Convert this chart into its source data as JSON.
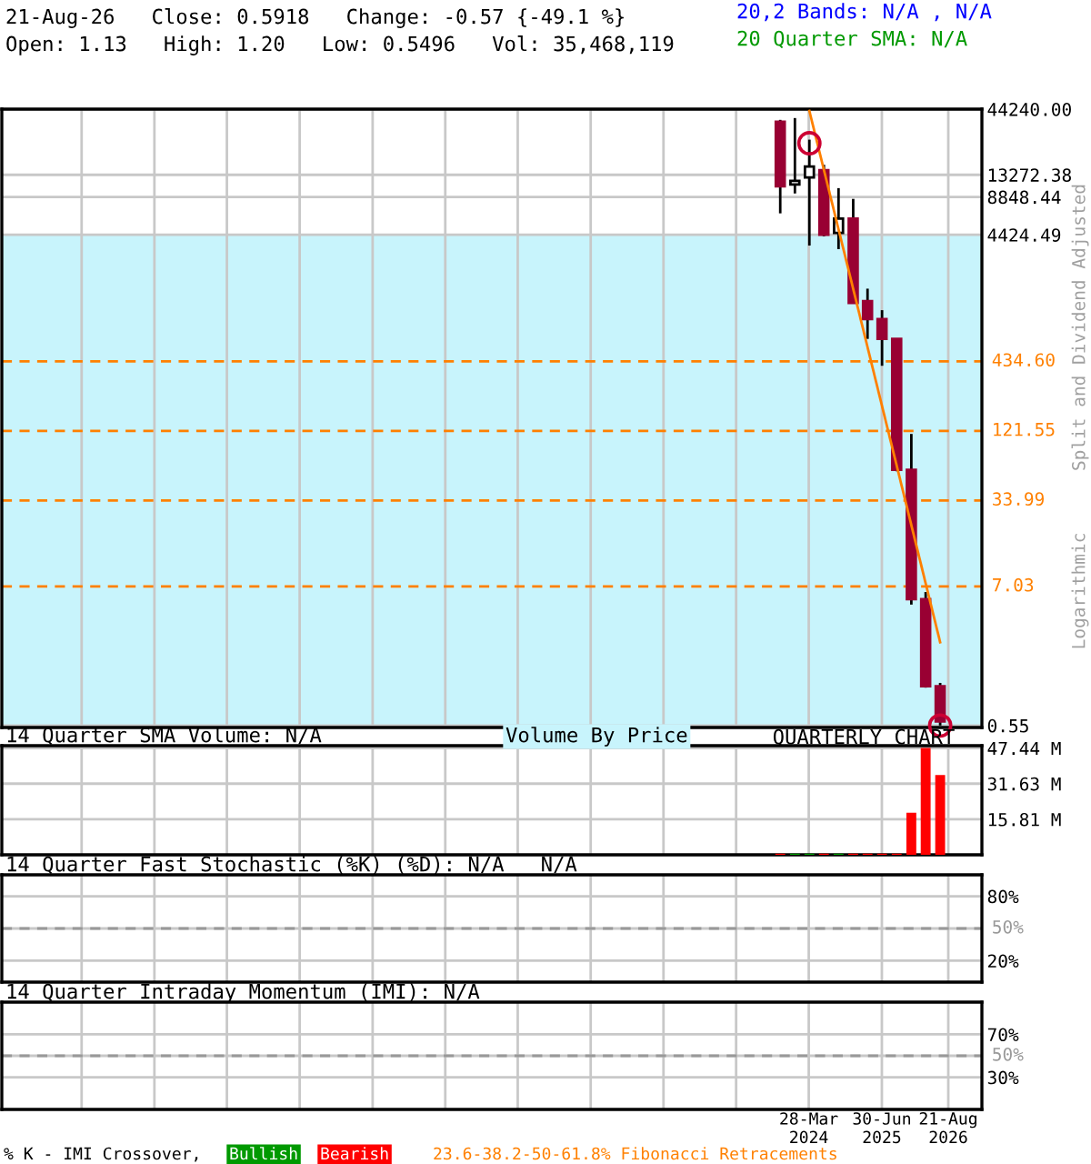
{
  "chart_data": [
    {
      "type": "candlestick",
      "title": "21-Aug-26   Close: 0.5918   Change: -0.57 {-49.1 %}",
      "subtitle": "Open: 1.13   High: 1.20   Low: 0.5496   Vol: 35,468,119",
      "x": [
        "2023-10-01",
        "2024-01-01",
        "2024-04-01",
        "2024-07-01",
        "2024-10-01",
        "2025-01-01",
        "2025-04-01",
        "2025-07-01",
        "2025-10-01",
        "2026-01-01",
        "2026-04-01",
        "2026-07-01"
      ],
      "ohlc": [
        [
          35140,
          36330,
          6550,
          10760
        ],
        [
          11110,
          37560,
          9430,
          11880
        ],
        [
          12670,
          25280,
          3630,
          15440
        ],
        [
          14460,
          15960,
          4300,
          4424
        ],
        [
          4570,
          10400,
          3400,
          5950
        ],
        [
          5950,
          8540,
          1250,
          1267
        ],
        [
          1310,
          1648,
          656,
          943
        ],
        [
          943,
          1111,
          401,
          656
        ],
        [
          656,
          656,
          58,
          59.5
        ],
        [
          59.5,
          115,
          5.04,
          5.57
        ],
        [
          5.57,
          6.35,
          1.1,
          1.13
        ],
        [
          1.13,
          1.2,
          0.5496,
          0.5918
        ]
      ],
      "colors": [
        "#990033",
        "#ffffff",
        "#ffffff",
        "#990033",
        "#ffffff",
        "#990033",
        "#990033",
        "#990033",
        "#990033",
        "#990033",
        "#990033",
        "#990033"
      ],
      "series": [
        {
          "type": "line",
          "color": "#ff8000",
          "x": [
            "2024-04-01",
            "2026-07-01"
          ],
          "values": [
            42820,
            2.53
          ],
          "marker": "none",
          "line_style": "solid"
        },
        {
          "type": "scatter",
          "color": "#cc0033",
          "x": [
            "2024-04-01",
            "2026-07-01"
          ],
          "values": [
            23680,
            0.5496
          ],
          "marker": "circle"
        }
      ],
      "log": true,
      "ylim": [
        0.53,
        44240
      ],
      "yticks": [
        {
          "value": 0.55,
          "label": "0.55"
        },
        {
          "value": 4424.49,
          "label": "4424.49"
        },
        {
          "value": 8848.44,
          "label": "8848.44"
        },
        {
          "value": 13272.38,
          "label": "13272.38"
        },
        {
          "value": 44240,
          "label": "44240.00"
        }
      ],
      "xlim": [
        "2010-05-15",
        "2027-03-20"
      ],
      "xticks": [
        {
          "value": "2011-09-28",
          "label": null
        },
        {
          "value": "2012-12-28",
          "label": null
        },
        {
          "value": "2014-03-28",
          "label": null
        },
        {
          "value": "2015-06-28",
          "label": null
        },
        {
          "value": "2016-09-28",
          "label": null
        },
        {
          "value": "2017-12-28",
          "label": null
        },
        {
          "value": "2019-03-28",
          "label": null
        },
        {
          "value": "2020-06-28",
          "label": null
        },
        {
          "value": "2021-09-28",
          "label": null
        },
        {
          "value": "2022-12-28",
          "label": null
        },
        {
          "value": "2024-03-28",
          "label": null
        },
        {
          "value": "2025-06-30",
          "label": null
        },
        {
          "value": "2026-08-21",
          "label": null
        }
      ],
      "ref_lines": [
        {
          "axis": "y",
          "value": 434.6,
          "label": "434.60",
          "color": "#ff8000",
          "line_style": "dashed"
        },
        {
          "axis": "y",
          "value": 121.55,
          "label": "121.55",
          "color": "#ff8000",
          "line_style": "dashed"
        },
        {
          "axis": "y",
          "value": 33.99,
          "label": "33.99",
          "color": "#ff8000",
          "line_style": "dashed"
        },
        {
          "axis": "y",
          "value": 7.03,
          "label": "7.03",
          "color": "#ff8000",
          "line_style": "dashed"
        }
      ],
      "bands": [
        {
          "axis": "y",
          "from": 0.55,
          "to": 4424.49,
          "color": "#c8f4fc"
        }
      ],
      "annotations": [
        "20,2 Bands: N/A , N/A",
        "20 Quarter SMA: N/A",
        "Split and Dividend Adjusted",
        "Logarithmic",
        "QUARTERLY CHART"
      ],
      "grid": true,
      "tick_labels": "y"
    },
    {
      "type": "bar",
      "title": "14 Quarter SMA Volume: N/A",
      "x": [
        "2023-10-01",
        "2024-01-01",
        "2024-04-01",
        "2024-07-01",
        "2024-10-01",
        "2025-01-01",
        "2025-04-01",
        "2025-07-01",
        "2025-10-01",
        "2026-01-01",
        "2026-04-01",
        "2026-07-01"
      ],
      "values": [
        0.5,
        0.5,
        0.5,
        0.5,
        0.5,
        0.5,
        0.5,
        0.5,
        0.5,
        18.7,
        47.44,
        35.47
      ],
      "colors": [
        "#ff0000",
        "#009900",
        "#009900",
        "#ff0000",
        "#009900",
        "#ff0000",
        "#ff0000",
        "#ff0000",
        "#ff0000",
        "#ff0000",
        "#ff0000",
        "#ff0000"
      ],
      "ylim": [
        0,
        48.5
      ],
      "yticks": [
        {
          "value": 15.81,
          "label": "15.81 M"
        },
        {
          "value": 31.63,
          "label": "31.63 M"
        },
        {
          "value": 47.44,
          "label": "47.44 M"
        }
      ],
      "xlim": [
        "2010-05-15",
        "2027-03-20"
      ],
      "xticks": [
        {
          "value": "2011-09-28",
          "label": null
        },
        {
          "value": "2012-12-28",
          "label": null
        },
        {
          "value": "2014-03-28",
          "label": null
        },
        {
          "value": "2015-06-28",
          "label": null
        },
        {
          "value": "2016-09-28",
          "label": null
        },
        {
          "value": "2017-12-28",
          "label": null
        },
        {
          "value": "2019-03-28",
          "label": null
        },
        {
          "value": "2020-06-28",
          "label": null
        },
        {
          "value": "2021-09-28",
          "label": null
        },
        {
          "value": "2022-12-28",
          "label": null
        },
        {
          "value": "2024-03-28",
          "label": null
        },
        {
          "value": "2025-06-30",
          "label": null
        },
        {
          "value": "2026-08-21",
          "label": null
        }
      ],
      "annotations": [
        "Volume By Price"
      ],
      "grid": true,
      "tick_labels": "y"
    },
    {
      "type": "line",
      "title": "14 Quarter Fast Stochastic (%K) (%D): N/A   N/A",
      "ylim": [
        0,
        100
      ],
      "yticks": [
        {
          "value": 20,
          "label": "20%"
        },
        {
          "value": 50,
          "label": null
        },
        {
          "value": 80,
          "label": "80%"
        }
      ],
      "ref_lines": [
        {
          "axis": "y",
          "value": 50,
          "label": "50%",
          "color": "#999999",
          "line_style": "dashed"
        }
      ],
      "xlim": [
        "2010-05-15",
        "2027-03-20"
      ],
      "xticks": [
        {
          "value": "2011-09-28",
          "label": null
        },
        {
          "value": "2012-12-28",
          "label": null
        },
        {
          "value": "2014-03-28",
          "label": null
        },
        {
          "value": "2015-06-28",
          "label": null
        },
        {
          "value": "2016-09-28",
          "label": null
        },
        {
          "value": "2017-12-28",
          "label": null
        },
        {
          "value": "2019-03-28",
          "label": null
        },
        {
          "value": "2020-06-28",
          "label": null
        },
        {
          "value": "2021-09-28",
          "label": null
        },
        {
          "value": "2022-12-28",
          "label": null
        },
        {
          "value": "2024-03-28",
          "label": null
        },
        {
          "value": "2025-06-30",
          "label": null
        },
        {
          "value": "2026-08-21",
          "label": null
        }
      ],
      "grid": true,
      "tick_labels": "y"
    },
    {
      "type": "line",
      "title": "14 Quarter Intraday Momentum (IMI): N/A",
      "ylim": [
        0,
        100
      ],
      "yticks": [
        {
          "value": 30,
          "label": "30%"
        },
        {
          "value": 50,
          "label": null
        },
        {
          "value": 70,
          "label": "70%"
        }
      ],
      "ref_lines": [
        {
          "axis": "y",
          "value": 50,
          "label": "50%",
          "color": "#999999",
          "line_style": "dashed"
        }
      ],
      "xlim": [
        "2010-05-15",
        "2027-03-20"
      ],
      "xticks": [
        {
          "value": "2011-09-28",
          "label": null
        },
        {
          "value": "2012-12-28",
          "label": null
        },
        {
          "value": "2014-03-28",
          "label": null
        },
        {
          "value": "2015-06-28",
          "label": null
        },
        {
          "value": "2016-09-28",
          "label": null
        },
        {
          "value": "2017-12-28",
          "label": null
        },
        {
          "value": "2019-03-28",
          "label": null
        },
        {
          "value": "2020-06-28",
          "label": null
        },
        {
          "value": "2021-09-28",
          "label": null
        },
        {
          "value": "2022-12-28",
          "label": null
        },
        {
          "value": "2024-03-28",
          "label": "28-Mar\n2024"
        },
        {
          "value": "2025-06-30",
          "label": "30-Jun\n2025"
        },
        {
          "value": "2026-08-21",
          "label": "21-Aug\n2026"
        }
      ],
      "annotations": [
        "% K - IMI Crossover,",
        "Bullish",
        "Bearish",
        "23.6-38.2-50-61.8% Fibonacci Retracements"
      ],
      "grid": true
    }
  ]
}
